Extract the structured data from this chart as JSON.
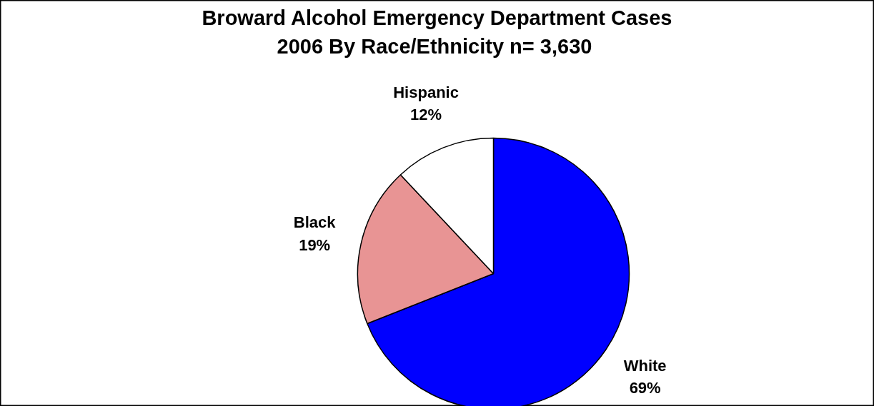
{
  "chart_data": {
    "type": "pie",
    "title": "Broward Alcohol Emergency Department Cases\n2006 By Race/Ethnicity  n= 3,630",
    "categories": [
      "White",
      "Black",
      "Hispanic"
    ],
    "values": [
      69,
      19,
      12
    ],
    "value_labels": [
      "69%",
      "19%",
      "12%"
    ],
    "colors": [
      "#0000ff",
      "#e89494",
      "#ffffff"
    ]
  }
}
